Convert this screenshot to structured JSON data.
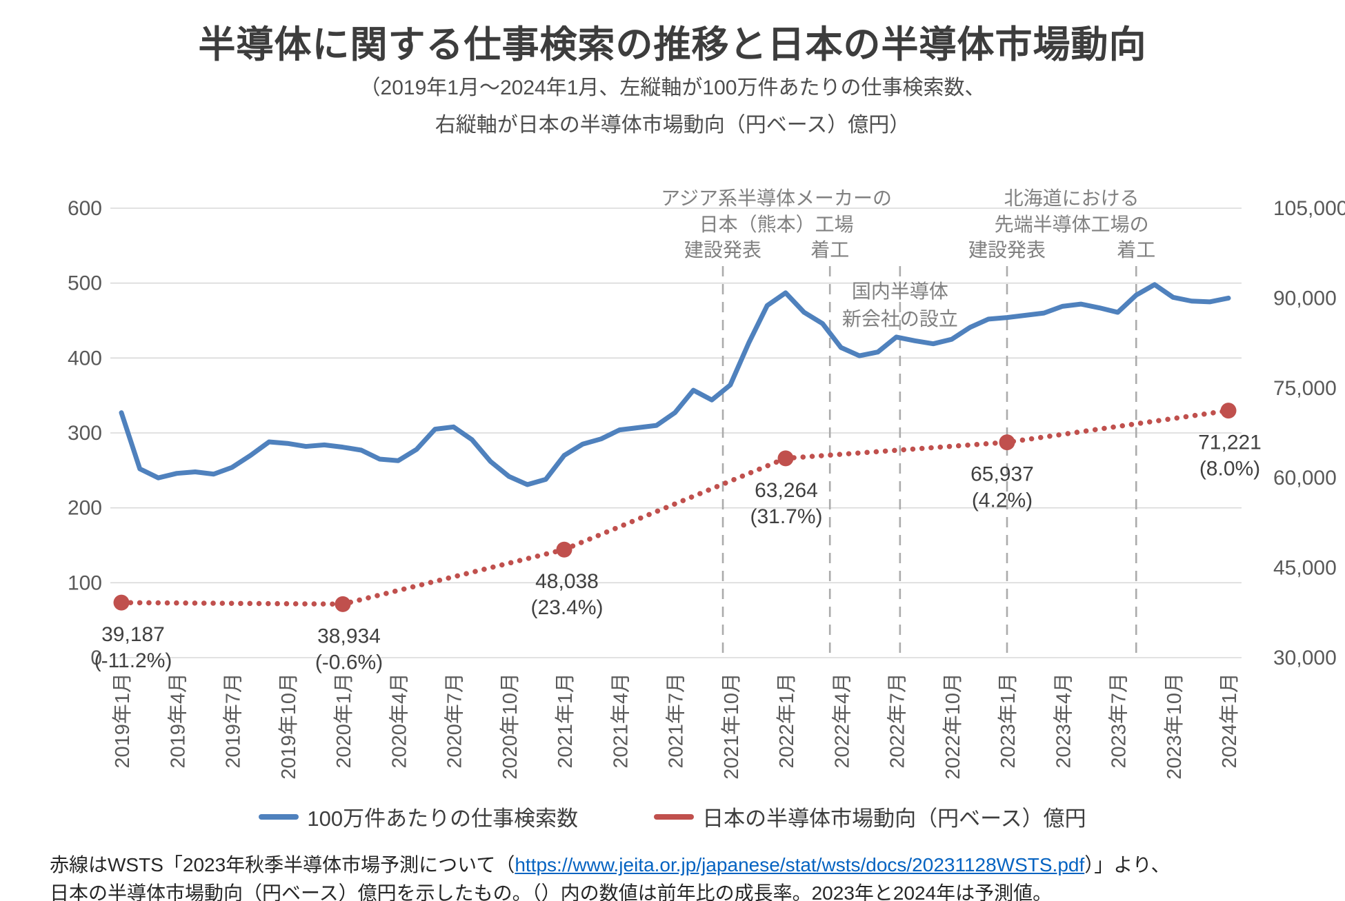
{
  "title": "半導体に関する仕事検索の推移と日本の半導体市場動向",
  "subtitle_line1": "（2019年1月～2024年1月、左縦軸が100万件あたりの仕事検索数、",
  "subtitle_line2": "右縦軸が日本の半導体市場動向（円ベース）億円）",
  "colors": {
    "job_line": "#4F81BD",
    "market_line": "#C0504D",
    "gridline": "#d9d9d9",
    "event_line": "#ababab",
    "axis_text": "#595959",
    "annotation_text": "#808080",
    "data_label_text": "#404040",
    "link": "#0563C1"
  },
  "chart_data": {
    "type": "line",
    "title": "半導体に関する仕事検索の推移と日本の半導体市場動向",
    "x_axis": {
      "start": "2019年1月",
      "end": "2024年1月",
      "months_total": 61,
      "tick_every_months": 3,
      "tick_labels": [
        "2019年1月",
        "2019年4月",
        "2019年7月",
        "2019年10月",
        "2020年1月",
        "2020年4月",
        "2020年7月",
        "2020年10月",
        "2021年1月",
        "2021年4月",
        "2021年7月",
        "2021年10月",
        "2022年1月",
        "2022年4月",
        "2022年7月",
        "2022年10月",
        "2023年1月",
        "2023年4月",
        "2023年7月",
        "2023年10月",
        "2024年1月"
      ]
    },
    "y_left": {
      "min": 0,
      "max": 600,
      "step": 100,
      "tick_labels": [
        "0",
        "100",
        "200",
        "300",
        "400",
        "500",
        "600"
      ],
      "grid": true
    },
    "y_right": {
      "min": 30000,
      "max": 105000,
      "step": 15000,
      "tick_labels": [
        "30,000",
        "45,000",
        "60,000",
        "75,000",
        "90,000",
        "105,000"
      ]
    },
    "series": [
      {
        "id": "job_searches",
        "name": "100万件あたりの仕事検索数",
        "axis": "left",
        "style": "solid",
        "color": "#4F81BD",
        "monthly_values": [
          327,
          252,
          240,
          246,
          248,
          245,
          254,
          270,
          288,
          286,
          282,
          284,
          281,
          277,
          265,
          263,
          278,
          305,
          308,
          291,
          262,
          242,
          231,
          238,
          270,
          285,
          292,
          304,
          307,
          310,
          327,
          357,
          344,
          364,
          420,
          470,
          487,
          461,
          446,
          414,
          403,
          408,
          428,
          423,
          419,
          425,
          441,
          452,
          454,
          457,
          460,
          469,
          472,
          467,
          461,
          484,
          498,
          481,
          476,
          475,
          480
        ]
      },
      {
        "id": "market",
        "name": "日本の半導体市場動向（円ベース）億円",
        "axis": "right",
        "style": "dotted",
        "color": "#C0504D",
        "annual_points": [
          {
            "month": 0,
            "year": "2019",
            "value": 39187,
            "label": "39,187",
            "growth": "(-11.2%)"
          },
          {
            "month": 12,
            "year": "2020",
            "value": 38934,
            "label": "38,934",
            "growth": "(-0.6%)"
          },
          {
            "month": 24,
            "year": "2021",
            "value": 48038,
            "label": "48,038",
            "growth": "(23.4%)"
          },
          {
            "month": 36,
            "year": "2022",
            "value": 63264,
            "label": "63,264",
            "growth": "(31.7%)"
          },
          {
            "month": 48,
            "year": "2023",
            "value": 65937,
            "label": "65,937",
            "growth": "(4.2%)"
          },
          {
            "month": 60,
            "year": "2024",
            "value": 71221,
            "label": "71,221",
            "growth": "(8.0%)"
          }
        ]
      }
    ],
    "event_lines": [
      {
        "month": 32.6
      },
      {
        "month": 38.4
      },
      {
        "month": 42.2
      },
      {
        "month": 48.0
      },
      {
        "month": 55.0
      }
    ],
    "annotations": [
      {
        "type": "block",
        "center_month": 35.5,
        "lines": [
          "アジア系半導体メーカーの",
          "日本（熊本）工場"
        ],
        "labels": [
          {
            "text": "建設発表",
            "month": 32.6
          },
          {
            "text": "着工",
            "month": 38.4
          }
        ]
      },
      {
        "type": "overlay",
        "center_month": 42.2,
        "lines": [
          "国内半導体",
          "新会社の設立"
        ],
        "labels": []
      },
      {
        "type": "block",
        "center_month": 51.5,
        "lines": [
          "北海道における",
          "先端半導体工場の"
        ],
        "labels": [
          {
            "text": "建設発表",
            "month": 48.0
          },
          {
            "text": "着工",
            "month": 55.0
          }
        ]
      }
    ],
    "legend_position": "bottom"
  },
  "legend": {
    "job_label": "100万件あたりの仕事検索数",
    "market_label": "日本の半導体市場動向（円ベース）億円"
  },
  "footer": {
    "line1_prefix": "赤線はWSTS「2023年秋季半導体市場予測について（",
    "link": "https://www.jeita.or.jp/japanese/stat/wsts/docs/20231128WSTS.pdf",
    "line1_suffix": "）」より、",
    "line2": "日本の半導体市場動向（円ベース）億円を示したもの。（）内の数値は前年比の成長率。2023年と2024年は予測値。"
  }
}
